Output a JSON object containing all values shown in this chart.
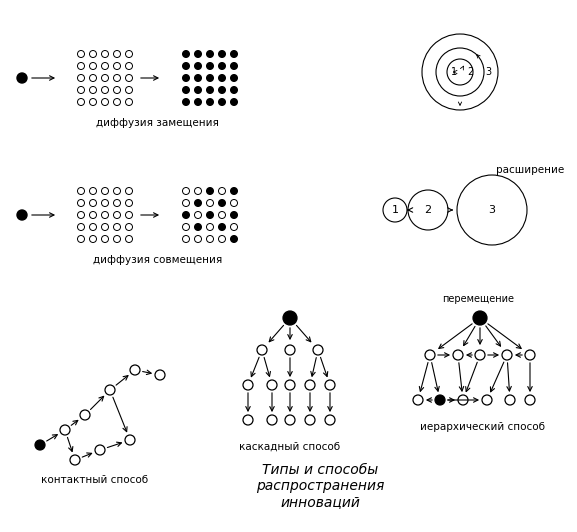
{
  "bg_color": "#ffffff",
  "title_text": "Типы и способы\nраспространения\nинноваций",
  "title_fontsize": 10,
  "label1": "диффузия замещения",
  "label2": "диффузия совмещения",
  "label3": "контактный способ",
  "label4": "каскадный способ",
  "label5": "иерархический способ",
  "label_expand": "расширение",
  "label_move": "перемещение",
  "figw": 5.77,
  "figh": 5.32,
  "dpi": 100
}
